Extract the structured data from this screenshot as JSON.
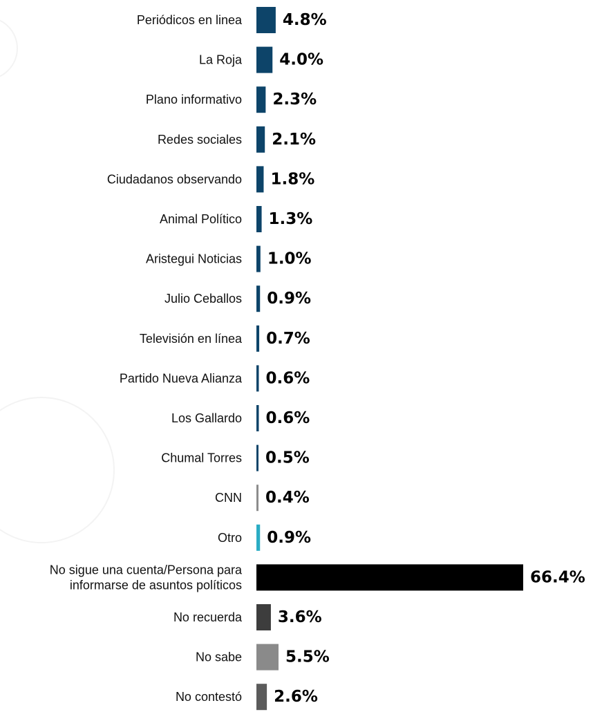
{
  "chart_data": {
    "type": "bar",
    "orientation": "horizontal",
    "categories": [
      "Periódicos en linea",
      "La Roja",
      "Plano informativo",
      "Redes sociales",
      "Ciudadanos observando",
      "Animal Político",
      "Aristegui Noticias",
      "Julio Ceballos",
      "Televisión en línea",
      "Partido Nueva Alianza",
      "Los Gallardo",
      "Chumal Torres",
      "CNN",
      "Otro",
      "No sigue una cuenta/Persona para informarse de asuntos políticos",
      "No recuerda",
      "No sabe",
      "No contestó"
    ],
    "category_lines": [
      [
        "Periódicos en linea"
      ],
      [
        "La Roja"
      ],
      [
        "Plano informativo"
      ],
      [
        "Redes sociales"
      ],
      [
        "Ciudadanos observando"
      ],
      [
        "Animal Político"
      ],
      [
        "Aristegui Noticias"
      ],
      [
        "Julio Ceballos"
      ],
      [
        "Televisión en línea"
      ],
      [
        "Partido Nueva Alianza"
      ],
      [
        "Los Gallardo"
      ],
      [
        "Chumal Torres"
      ],
      [
        "CNN"
      ],
      [
        "Otro"
      ],
      [
        "No sigue una cuenta/Persona para",
        "informarse de asuntos políticos"
      ],
      [
        "No recuerda"
      ],
      [
        "No sabe"
      ],
      [
        "No contestó"
      ]
    ],
    "values": [
      4.8,
      4.0,
      2.3,
      2.1,
      1.8,
      1.3,
      1.0,
      0.9,
      0.7,
      0.6,
      0.6,
      0.5,
      0.4,
      0.9,
      66.4,
      3.6,
      5.5,
      2.6
    ],
    "value_labels": [
      "4.8%",
      "4.0%",
      "2.3%",
      "2.1%",
      "1.8%",
      "1.3%",
      "1.0%",
      "0.9%",
      "0.7%",
      "0.6%",
      "0.6%",
      "0.5%",
      "0.4%",
      "0.9%",
      "66.4%",
      "3.6%",
      "5.5%",
      "2.6%"
    ],
    "colors": [
      "#0d4469",
      "#0d4469",
      "#0d4469",
      "#0d4469",
      "#0d4469",
      "#0d4469",
      "#0d4469",
      "#0d4469",
      "#0d4469",
      "#0d4469",
      "#0d4469",
      "#0d4469",
      "#8c8c8c",
      "#2aacc4",
      "#000000",
      "#3d3d3d",
      "#8a8a8a",
      "#5b5b5b"
    ],
    "xlim": [
      0,
      66.4
    ],
    "grid": false,
    "legend": "none"
  }
}
